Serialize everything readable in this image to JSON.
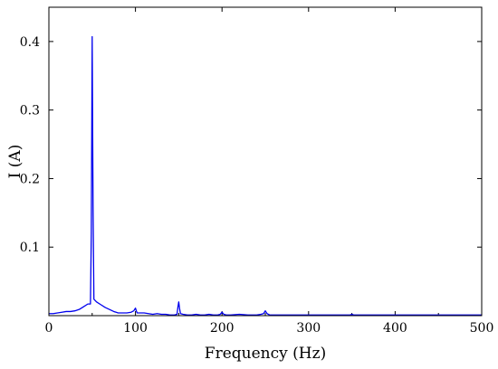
{
  "chart_data": {
    "type": "line",
    "title": "",
    "xlabel": "Frequency (Hz)",
    "ylabel": "I (A)",
    "xlim": [
      0,
      500
    ],
    "ylim": [
      0,
      0.45
    ],
    "x_ticks": [
      0,
      100,
      200,
      300,
      400,
      500
    ],
    "x_tick_labels": [
      "0",
      "100",
      "200",
      "300",
      "400",
      "500"
    ],
    "y_ticks": [
      0.1,
      0.2,
      0.3,
      0.4
    ],
    "y_tick_labels": [
      "0.1",
      "0.2",
      "0.3",
      "0.4"
    ],
    "grid": false,
    "legend": "none",
    "line_color": "#0000ee",
    "series": [
      {
        "x": [
          0,
          5,
          10,
          15,
          20,
          25,
          30,
          35,
          40,
          45,
          48,
          49,
          50,
          51,
          52,
          55,
          60,
          65,
          70,
          75,
          80,
          85,
          90,
          95,
          98,
          99,
          100,
          101,
          102,
          105,
          110,
          115,
          120,
          125,
          130,
          135,
          140,
          145,
          148,
          149,
          150,
          151,
          152,
          155,
          160,
          165,
          170,
          175,
          180,
          185,
          190,
          195,
          198,
          200,
          202,
          205,
          210,
          220,
          230,
          240,
          245,
          248,
          250,
          252,
          255,
          260,
          270,
          280,
          290,
          300,
          310,
          320,
          330,
          340,
          348,
          350,
          352,
          360,
          380,
          400,
          420,
          440,
          450,
          460,
          480,
          500
        ],
        "y": [
          0.003,
          0.003,
          0.004,
          0.005,
          0.006,
          0.006,
          0.007,
          0.009,
          0.013,
          0.017,
          0.017,
          0.12,
          0.407,
          0.16,
          0.024,
          0.02,
          0.016,
          0.012,
          0.009,
          0.006,
          0.004,
          0.004,
          0.004,
          0.005,
          0.007,
          0.009,
          0.011,
          0.007,
          0.004,
          0.004,
          0.004,
          0.003,
          0.002,
          0.003,
          0.002,
          0.002,
          0.001,
          0.001,
          0.002,
          0.012,
          0.02,
          0.01,
          0.003,
          0.002,
          0.001,
          0.001,
          0.002,
          0.001,
          0.001,
          0.002,
          0.001,
          0.001,
          0.002,
          0.005,
          0.002,
          0.001,
          0.001,
          0.002,
          0.001,
          0.001,
          0.002,
          0.003,
          0.007,
          0.003,
          0.001,
          0.001,
          0.001,
          0.001,
          0.001,
          0.001,
          0.001,
          0.001,
          0.001,
          0.001,
          0.001,
          0.002,
          0.001,
          0.001,
          0.001,
          0.001,
          0.001,
          0.001,
          0.001,
          0.001,
          0.001,
          0.001
        ]
      }
    ]
  }
}
